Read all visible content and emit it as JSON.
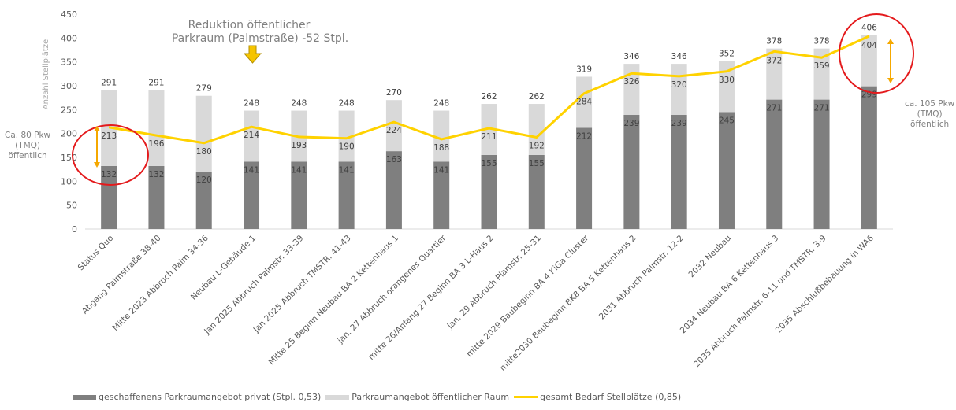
{
  "chart_data": {
    "type": "bar",
    "stacked": true,
    "ylabel": "Anzahl Stellplätze",
    "ylim": [
      0,
      450
    ],
    "yticks": [
      0,
      50,
      100,
      150,
      200,
      250,
      300,
      350,
      400,
      450
    ],
    "grid": false,
    "legend_position": "bottom-left",
    "categories": [
      "Status Quo",
      "Abgang Palmstraße 38-40",
      "Mitte 2023 Abbruch Palm 34-36",
      "Neubau L-Gebäude 1",
      "Jan 2025 Abbruch Palmstr. 33-39",
      "Jan 2025 Abbruch TMSTR. 41-43",
      "Mitte 25 Beginn Neubau BA 2 Kettenhaus 1",
      "jan. 27 Abbruch orangenes Quartier",
      "mitte 26/Anfang 27 Beginn BA 3 L-Haus 2",
      "jan. 29 Abbruch Plamstr. 25-31",
      "mitte 2029 Baubeginn BA 4 KiGa Cluster",
      "mitte2030 Baubeginn BK8 BA 5 Kettenhaus 2",
      "2031 Abbruch Palmstr. 12-2",
      "2032 Neubau",
      "2034 Neubau BA 6 Kettenhaus 3",
      "2035 Abbruch Palmstr. 6-11 und TMSTR. 3-9",
      "2035 Abschlußbebauung in WA6"
    ],
    "series": [
      {
        "name": "geschaffenens Parkraumangebot privat (Stpl. 0,53)",
        "type": "bar",
        "color": "#7f7f7f",
        "values": [
          132,
          132,
          120,
          141,
          141,
          141,
          163,
          141,
          155,
          155,
          212,
          239,
          239,
          245,
          271,
          271,
          299
        ]
      },
      {
        "name": "Parkraumangebot öffentlicher Raum",
        "type": "bar",
        "color": "#d9d9d9",
        "values": [
          159,
          159,
          159,
          107,
          107,
          107,
          107,
          107,
          107,
          107,
          107,
          107,
          107,
          107,
          107,
          107,
          107
        ]
      },
      {
        "name": "gesamt Bedarf Stellplätze (0,85)",
        "type": "line",
        "color": "#ffd200",
        "values": [
          213,
          196,
          180,
          214,
          193,
          190,
          224,
          188,
          211,
          192,
          284,
          326,
          320,
          330,
          372,
          359,
          404
        ]
      }
    ],
    "total_labels": [
      "291",
      "291",
      "279",
      "248",
      "248",
      "248",
      "270",
      "248",
      "262",
      "262",
      "319",
      "346",
      "346",
      "352",
      "378",
      "378",
      "406"
    ],
    "line_labels": [
      "213",
      "196",
      "180",
      "214",
      "193",
      "190",
      "224",
      "188",
      "211",
      "192",
      "284",
      "326",
      "320",
      "330",
      "372",
      "359",
      "404"
    ],
    "private_labels": [
      "132",
      "132",
      "120",
      "141",
      "141",
      "141",
      "163",
      "141",
      "155",
      "155",
      "212",
      "239",
      "239",
      "245",
      "271",
      "271",
      "299"
    ],
    "annotations": {
      "reduction": "Reduktion öffentlicher Parkraum (Palmstraße) -52 Stpl.",
      "left_note": [
        "Ca. 80 Pkw",
        "(TMQ)",
        "öffentlich"
      ],
      "right_note": [
        "ca. 105 Pkw",
        "(TMQ)",
        "öffentlich"
      ]
    }
  }
}
